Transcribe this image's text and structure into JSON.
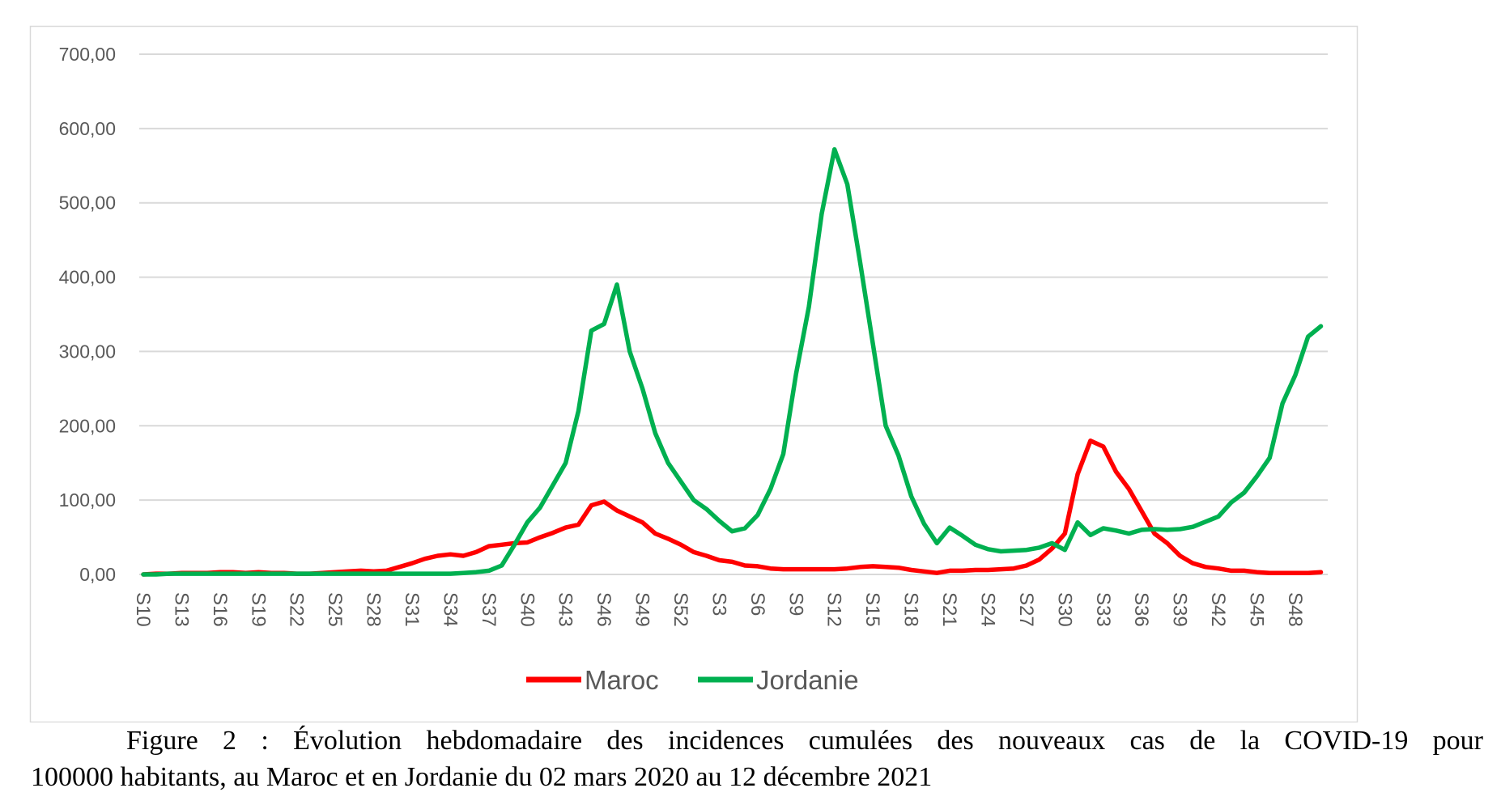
{
  "chart_data": {
    "type": "line",
    "title": "",
    "xlabel": "",
    "ylabel": "",
    "ylim": [
      0,
      700
    ],
    "yticks": [
      "0,00",
      "100,00",
      "200,00",
      "300,00",
      "400,00",
      "500,00",
      "600,00",
      "700,00"
    ],
    "ytick_values": [
      0,
      100,
      200,
      300,
      400,
      500,
      600,
      700
    ],
    "grid": true,
    "legend_position": "bottom",
    "x": [
      "S10",
      "S11",
      "S12",
      "S13",
      "S14",
      "S15",
      "S16",
      "S17",
      "S18",
      "S19",
      "S20",
      "S21",
      "S22",
      "S23",
      "S24",
      "S25",
      "S26",
      "S27",
      "S28",
      "S29",
      "S30",
      "S31",
      "S32",
      "S33",
      "S34",
      "S35",
      "S36",
      "S37",
      "S38",
      "S39",
      "S40",
      "S41",
      "S42",
      "S43",
      "S44",
      "S45",
      "S46",
      "S47",
      "S48",
      "S49",
      "S50",
      "S51",
      "S52",
      "S1",
      "S2",
      "S3",
      "S4",
      "S5",
      "S6",
      "S7",
      "S8",
      "S9",
      "S10",
      "S11",
      "S12",
      "S13",
      "S14",
      "S15",
      "S16",
      "S17",
      "S18",
      "S19",
      "S20",
      "S21",
      "S22",
      "S23",
      "S24",
      "S25",
      "S26",
      "S27",
      "S28",
      "S29",
      "S30",
      "S31",
      "S32",
      "S33",
      "S34",
      "S35",
      "S36",
      "S37",
      "S38",
      "S39",
      "S40",
      "S41",
      "S42",
      "S43",
      "S44",
      "S45",
      "S46",
      "S47",
      "S48",
      "S49",
      "S50"
    ],
    "xtick_labels": [
      "S10",
      "S13",
      "S16",
      "S19",
      "S22",
      "S25",
      "S28",
      "S31",
      "S34",
      "S37",
      "S40",
      "S43",
      "S46",
      "S49",
      "S52",
      "S3",
      "S6",
      "S9",
      "S12",
      "S15",
      "S18",
      "S21",
      "S24",
      "S27",
      "S30",
      "S33",
      "S36",
      "S39",
      "S42",
      "S45",
      "S48"
    ],
    "series": [
      {
        "name": "Maroc",
        "color": "#ff0000",
        "values": [
          0,
          1,
          1,
          2,
          2,
          2,
          3,
          3,
          2,
          3,
          2,
          2,
          1,
          1,
          2,
          3,
          4,
          5,
          4,
          5,
          10,
          15,
          21,
          25,
          27,
          25,
          30,
          38,
          40,
          42,
          43,
          50,
          56,
          63,
          67,
          93,
          98,
          86,
          78,
          70,
          55,
          48,
          40,
          30,
          25,
          19,
          17,
          12,
          11,
          8,
          7,
          7,
          7,
          7,
          7,
          8,
          10,
          11,
          10,
          9,
          6,
          4,
          2,
          5,
          5,
          6,
          6,
          7,
          8,
          12,
          20,
          35,
          55,
          135,
          180,
          172,
          138,
          115,
          85,
          55,
          42,
          25,
          15,
          10,
          8,
          5,
          5,
          3,
          2,
          2,
          2,
          2,
          3
        ]
      },
      {
        "name": "Jordanie",
        "color": "#00b050",
        "values": [
          0,
          0,
          1,
          1,
          1,
          1,
          1,
          1,
          1,
          1,
          1,
          1,
          1,
          1,
          1,
          1,
          1,
          1,
          1,
          1,
          1,
          1,
          1,
          1,
          1,
          2,
          3,
          5,
          12,
          40,
          70,
          90,
          120,
          150,
          220,
          328,
          337,
          390,
          300,
          250,
          190,
          150,
          125,
          100,
          88,
          72,
          58,
          62,
          80,
          115,
          162,
          270,
          360,
          485,
          572,
          525,
          420,
          310,
          200,
          160,
          105,
          68,
          42,
          63,
          52,
          40,
          34,
          31,
          32,
          33,
          36,
          42,
          33,
          70,
          53,
          62,
          59,
          55,
          60,
          61,
          60,
          61,
          64,
          71,
          78,
          97,
          110,
          132,
          157,
          230,
          268,
          320,
          334
        ]
      }
    ]
  },
  "caption": {
    "line1": "Figure 2 : Évolution hebdomadaire des incidences cumulées des nouveaux cas de la COVID-19 pour",
    "line2": "100000 habitants, au Maroc et en Jordanie du 02 mars 2020 au 12 décembre 2021"
  }
}
